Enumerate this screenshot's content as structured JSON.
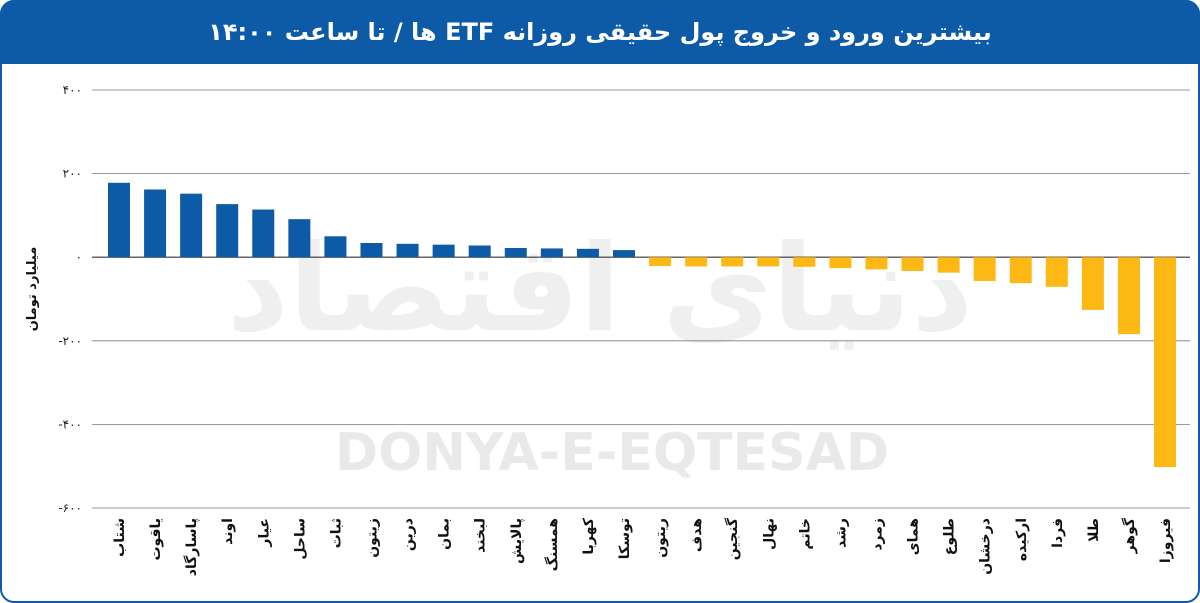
{
  "header": {
    "title": "بیشترین ورود و خروج پول حقیقی روزانه ETF ها / تا ساعت ۱۴:۰۰"
  },
  "watermark": {
    "latin": "DONYA-E-EQTESAD",
    "persian": "دنیای اقتصاد"
  },
  "colors": {
    "header": "#0d5aa7",
    "positive": "#0d5aa7",
    "negative": "#fdb813",
    "grid": "#7a7a7a"
  },
  "chart_data": {
    "type": "bar",
    "title": "بیشترین ورود و خروج پول حقیقی روزانه ETF ها / تا ساعت ۱۴:۰۰",
    "ylabel": "میلیارد تومان",
    "xlabel": "",
    "ylim": [
      -600,
      400
    ],
    "yticks": [
      400,
      200,
      0,
      -200,
      -400,
      -600
    ],
    "ytick_labels": [
      "۴۰۰",
      "۲۰۰",
      "۰",
      "-۲۰۰",
      "-۴۰۰",
      "-۶۰۰"
    ],
    "grid": true,
    "categories": [
      "شتاب",
      "یاقوت",
      "پاسارگاد",
      "اوند",
      "عیار",
      "ساحل",
      "ثبات",
      "زیتون",
      "درین",
      "بمان",
      "لبخند",
      "پالایش",
      "همسنگ",
      "کهربا",
      "توسکا",
      "ریتون",
      "هدف",
      "گنجین",
      "نهال",
      "خاتم",
      "رشد",
      "زمرد",
      "همای",
      "طلوع",
      "درخشان",
      "ارکیده",
      "فردا",
      "طلا",
      "گوهر",
      "فیروزا"
    ],
    "values": [
      178,
      162,
      152,
      127,
      114,
      91,
      50,
      34,
      32,
      30,
      28,
      22,
      21,
      20,
      17,
      -21,
      -22,
      -22,
      -22,
      -23,
      -26,
      -29,
      -33,
      -37,
      -57,
      -62,
      -71,
      -126,
      -184,
      -502
    ]
  }
}
